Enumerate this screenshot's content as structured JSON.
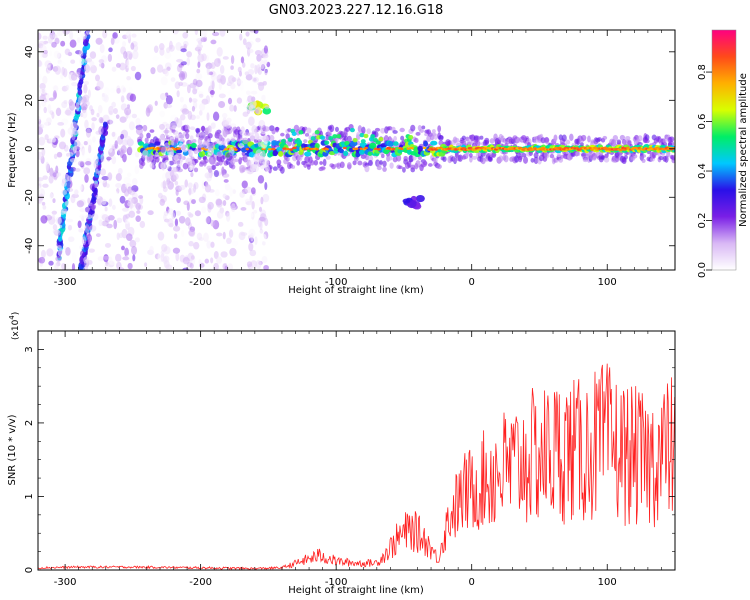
{
  "figure_title": "GN03.2023.227.12.16.G18",
  "chart_data": [
    {
      "type": "heatmap",
      "title": "",
      "xlabel": "Height of straight line (km)",
      "ylabel": "Frequency (Hz)",
      "xlim": [
        -320,
        150
      ],
      "ylim": [
        -50,
        49
      ],
      "xticks": [
        -300,
        -200,
        -100,
        0,
        100
      ],
      "yticks": [
        -40,
        -20,
        0,
        20,
        40
      ],
      "colorbar": {
        "label": "Normalized spectral amplitude",
        "range": [
          0,
          0.97
        ],
        "ticks": [
          0.0,
          0.2,
          0.4,
          0.6,
          0.8
        ],
        "tick_labels": [
          "0.0",
          "0.2",
          "0.4",
          "0.6",
          "0.8"
        ],
        "colormap": [
          "#ffffff",
          "#d9b8f5",
          "#7a1fe6",
          "#2a10e8",
          "#00c8ff",
          "#00ee66",
          "#d8ff00",
          "#ffb000",
          "#ff4a1a",
          "#ff0080"
        ]
      },
      "features": [
        {
          "kind": "main_trace",
          "x_range": [
            -245,
            150
          ],
          "freq_hz": 0,
          "peak_amplitude": 0.9
        },
        {
          "kind": "streak",
          "from": [
            -305,
            -45
          ],
          "to": [
            -283,
            49
          ],
          "amplitude": 0.35
        },
        {
          "kind": "streak",
          "from": [
            -288,
            -50
          ],
          "to": [
            -270,
            10
          ],
          "amplitude": 0.3
        },
        {
          "kind": "blob",
          "x": -158,
          "freq_hz": 17,
          "amplitude": 0.6
        },
        {
          "kind": "blob",
          "x": -42,
          "freq_hz": -22,
          "amplitude": 0.3
        },
        {
          "kind": "scatter_noise",
          "x_range": [
            -320,
            -150
          ],
          "amplitude": 0.2
        }
      ]
    },
    {
      "type": "line",
      "title": "",
      "xlabel": "Height of straight line (km)",
      "ylabel": "SNR (10 * v/v)",
      "y_multiplier": "(x10",
      "y_multiplier_exp": "4",
      "y_multiplier_close": ")",
      "xlim": [
        -320,
        150
      ],
      "ylim": [
        0,
        3.25
      ],
      "xticks": [
        -300,
        -200,
        -100,
        0,
        100
      ],
      "yticks": [
        0,
        1,
        2,
        3
      ],
      "series": [
        {
          "color": "#ff2020",
          "x": [
            -320,
            -290,
            -250,
            -200,
            -160,
            -140,
            -125,
            -112,
            -100,
            -90,
            -80,
            -70,
            -62,
            -55,
            -50,
            -45,
            -40,
            -35,
            -30,
            -25,
            -20,
            -15,
            -10,
            -5,
            0,
            5,
            10,
            20,
            30,
            40,
            50,
            60,
            70,
            80,
            90,
            100,
            110,
            120,
            130,
            140,
            150
          ],
          "values": [
            0.03,
            0.04,
            0.04,
            0.03,
            0.02,
            0.03,
            0.12,
            0.2,
            0.12,
            0.1,
            0.09,
            0.1,
            0.25,
            0.42,
            0.5,
            0.55,
            0.5,
            0.42,
            0.3,
            0.14,
            0.5,
            0.8,
            0.9,
            1.05,
            1.1,
            1.15,
            1.25,
            1.35,
            1.4,
            1.5,
            1.55,
            1.6,
            1.65,
            1.6,
            1.7,
            1.75,
            1.6,
            1.55,
            1.45,
            1.6,
            1.65
          ]
        }
      ]
    }
  ]
}
